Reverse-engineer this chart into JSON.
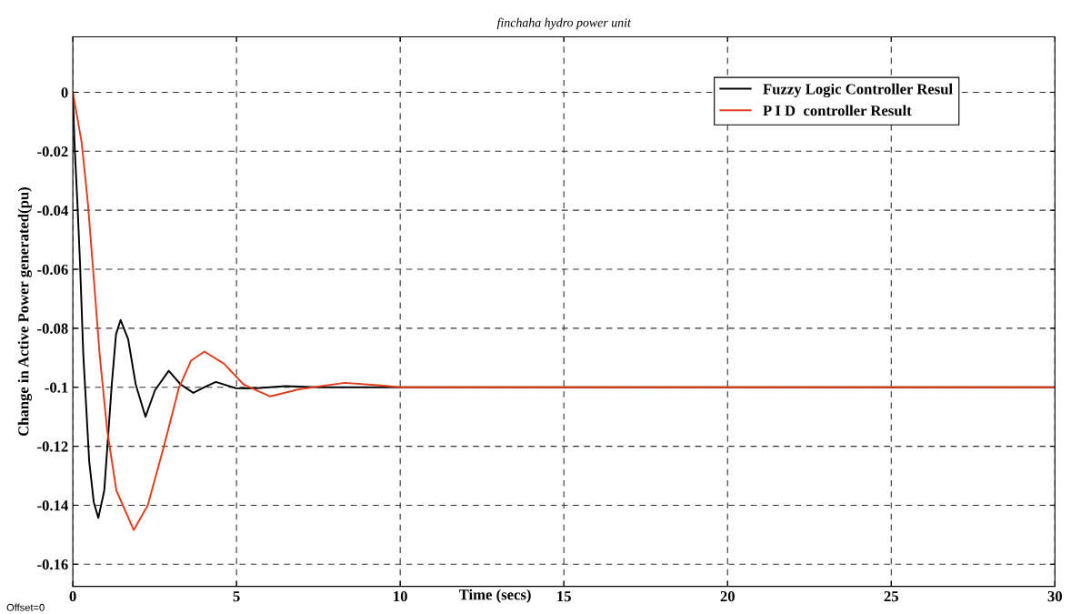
{
  "chart_data": {
    "type": "line",
    "title": "finchaha hydro power unit",
    "xlabel": "Time (secs)",
    "ylabel": "Change in Active Power generated(pu)",
    "annotations": [
      "Offset=0"
    ],
    "xlim": [
      0,
      30
    ],
    "xticks": [
      0,
      5,
      10,
      15,
      20,
      25,
      30
    ],
    "ylim": [
      -0.1675,
      0.0188
    ],
    "yticks": [
      0,
      -0.02,
      -0.04,
      -0.06,
      -0.08,
      -0.1,
      -0.12,
      -0.14,
      -0.16
    ],
    "grid": true,
    "legend": "top right",
    "line_style": "solid",
    "marker": "none",
    "series": [
      {
        "name": "Fuzzy Logic Controller Resul",
        "color": "#000000",
        "x": [
          0,
          0.05,
          0.14,
          0.22,
          0.32,
          0.5,
          0.64,
          0.78,
          0.96,
          1.19,
          1.32,
          1.46,
          1.69,
          1.92,
          2.22,
          2.51,
          2.93,
          3.29,
          3.68,
          4.02,
          4.37,
          4.98,
          5.5,
          6.5,
          7.5,
          30
        ],
        "values": [
          0,
          -0.017,
          -0.0376,
          -0.058,
          -0.089,
          -0.125,
          -0.139,
          -0.1443,
          -0.135,
          -0.099,
          -0.082,
          -0.0772,
          -0.0837,
          -0.099,
          -0.11,
          -0.101,
          -0.0944,
          -0.099,
          -0.1019,
          -0.1,
          -0.0982,
          -0.1003,
          -0.1004,
          -0.0996,
          -0.1,
          -0.1
        ]
      },
      {
        "name": "P I D  controller Result",
        "color": "#e03c1e",
        "x": [
          0,
          0.27,
          0.46,
          0.64,
          0.82,
          1.05,
          1.33,
          1.86,
          2.29,
          2.79,
          3.24,
          3.61,
          4.02,
          4.62,
          5.21,
          5.35,
          6.03,
          6.94,
          8.31,
          9.4,
          10,
          30
        ],
        "values": [
          0,
          -0.017,
          -0.0376,
          -0.063,
          -0.089,
          -0.1146,
          -0.135,
          -0.1484,
          -0.14,
          -0.1197,
          -0.1002,
          -0.091,
          -0.0879,
          -0.092,
          -0.099,
          -0.0997,
          -0.1031,
          -0.1006,
          -0.0985,
          -0.0994,
          -0.1,
          -0.1
        ]
      }
    ]
  }
}
